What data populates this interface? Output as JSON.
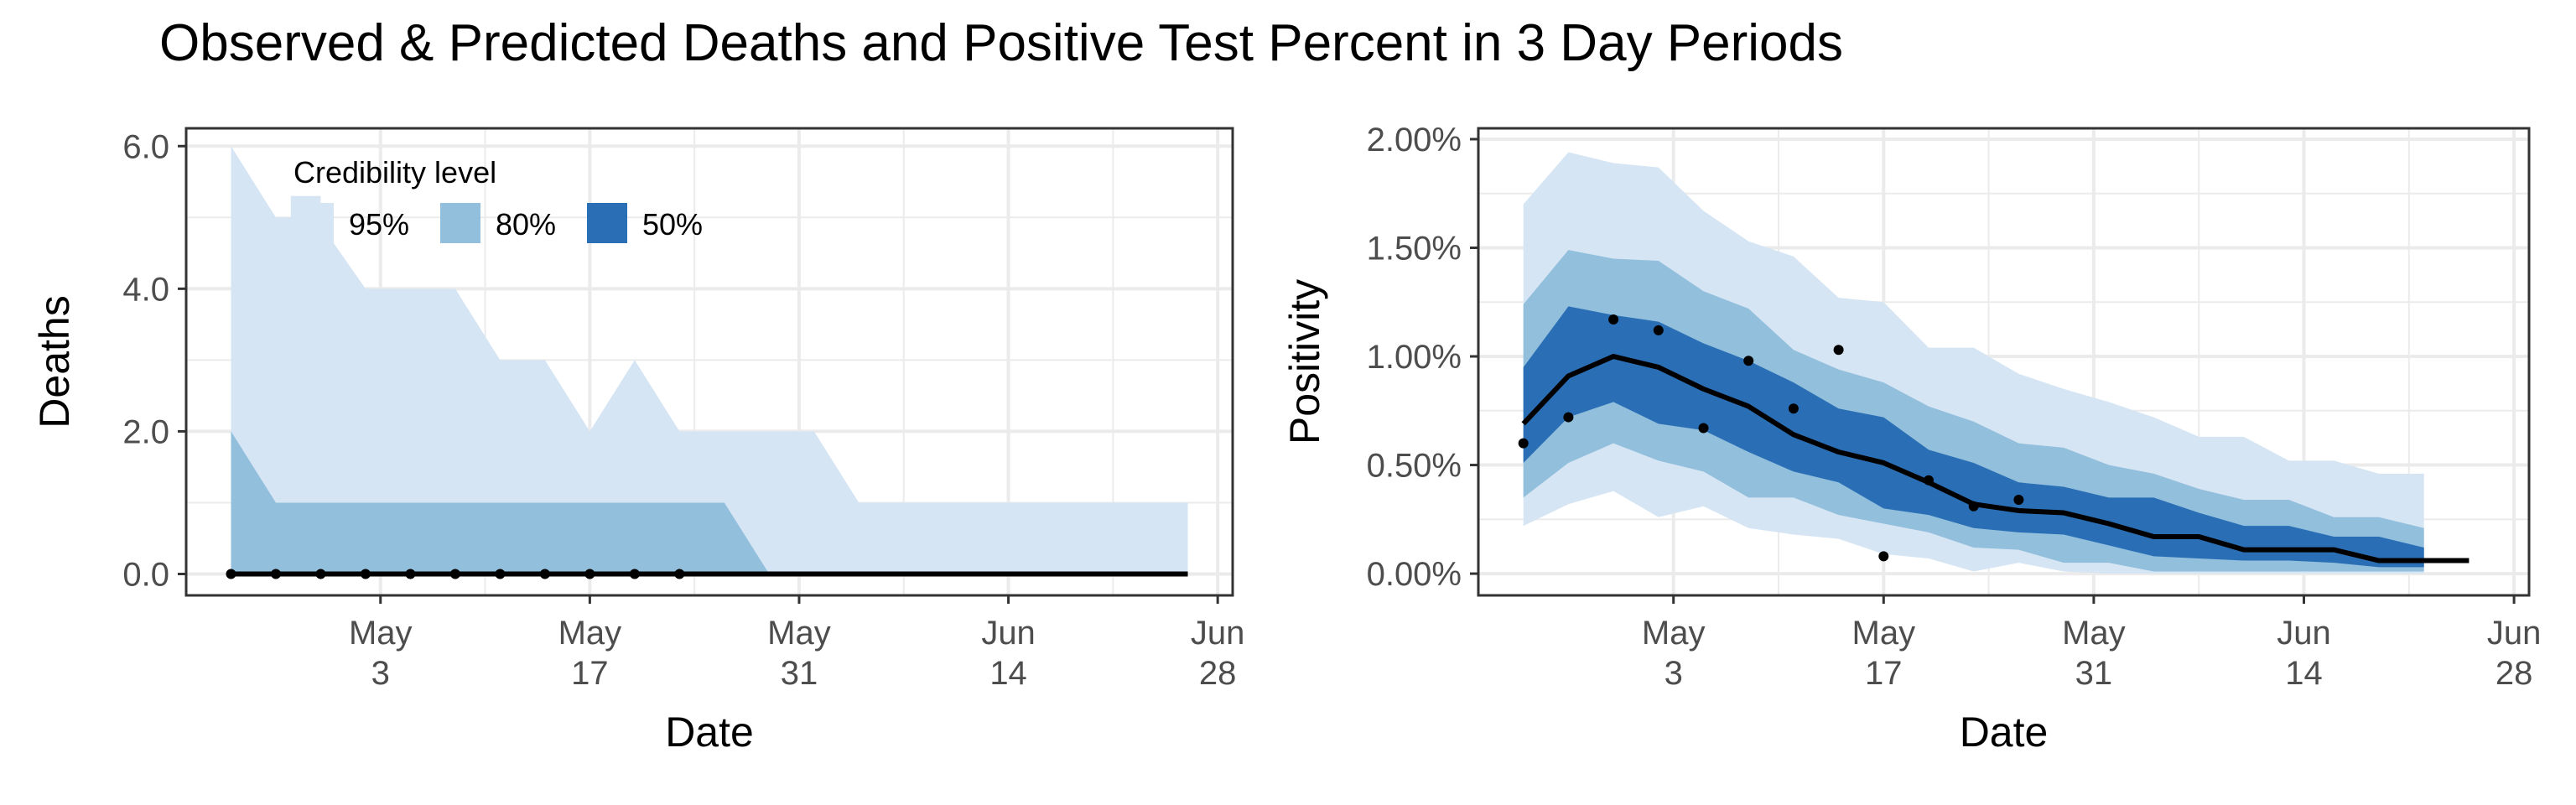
{
  "title": "Observed & Predicted Deaths and Positive Test Percent in 3 Day Periods",
  "colors": {
    "band95": "#d6e5f4",
    "band80": "#91bfdc",
    "band50": "#2a6fb5",
    "line": "#000000",
    "grid": "#ebebeb"
  },
  "legend": {
    "title": "Credibility level",
    "items": [
      {
        "label": "95%",
        "color": "#d6e5f4"
      },
      {
        "label": "80%",
        "color": "#91bfdc"
      },
      {
        "label": "50%",
        "color": "#2a6fb5"
      }
    ]
  },
  "chart_data": [
    {
      "type": "area",
      "panel": "deaths",
      "xlabel": "Date",
      "ylabel": "Deaths",
      "ylim": [
        -0.3,
        6.25
      ],
      "yticks": [
        0,
        2,
        4,
        6
      ],
      "ytick_labels": [
        "0.0",
        "2.0",
        "4.0",
        "6.0"
      ],
      "xticks": [
        "2020-05-03",
        "2020-05-17",
        "2020-05-31",
        "2020-06-14",
        "2020-06-28"
      ],
      "xtick_labels": [
        [
          "May",
          "3"
        ],
        [
          "May",
          "17"
        ],
        [
          "May",
          "31"
        ],
        [
          "Jun",
          "14"
        ],
        [
          "Jun",
          "28"
        ]
      ],
      "xlim": [
        "2020-04-20",
        "2020-06-29"
      ],
      "grid": true,
      "legend_position": "top-left",
      "band95": [
        {
          "x": "2020-04-23",
          "lo": 0,
          "hi": 6
        },
        {
          "x": "2020-04-26",
          "lo": 0,
          "hi": 5
        },
        {
          "x": "2020-04-27",
          "lo": 0,
          "hi": 5
        },
        {
          "x": "2020-04-27",
          "lo": 0,
          "hi": 5.3
        },
        {
          "x": "2020-04-29",
          "lo": 0,
          "hi": 5.3
        },
        {
          "x": "2020-04-29",
          "lo": 0,
          "hi": 4.9
        },
        {
          "x": "2020-05-02",
          "lo": 0,
          "hi": 4
        },
        {
          "x": "2020-05-08",
          "lo": 0,
          "hi": 4
        },
        {
          "x": "2020-05-11",
          "lo": 0,
          "hi": 3
        },
        {
          "x": "2020-05-14",
          "lo": 0,
          "hi": 3
        },
        {
          "x": "2020-05-17",
          "lo": 0,
          "hi": 2
        },
        {
          "x": "2020-05-20",
          "lo": 0,
          "hi": 3
        },
        {
          "x": "2020-05-23",
          "lo": 0,
          "hi": 2
        },
        {
          "x": "2020-06-01",
          "lo": 0,
          "hi": 2
        },
        {
          "x": "2020-06-04",
          "lo": 0,
          "hi": 1
        },
        {
          "x": "2020-06-26",
          "lo": 0,
          "hi": 1
        }
      ],
      "band80": [
        {
          "x": "2020-04-23",
          "lo": 0,
          "hi": 2
        },
        {
          "x": "2020-04-26",
          "lo": 0,
          "hi": 1
        },
        {
          "x": "2020-05-26",
          "lo": 0,
          "hi": 1
        },
        {
          "x": "2020-05-29",
          "lo": 0,
          "hi": 0
        }
      ],
      "band50": [],
      "predicted": [
        {
          "x": "2020-04-23",
          "y": 0
        },
        {
          "x": "2020-06-26",
          "y": 0
        }
      ],
      "observed": [
        {
          "x": "2020-04-23",
          "y": 0
        },
        {
          "x": "2020-04-26",
          "y": 0
        },
        {
          "x": "2020-04-29",
          "y": 0
        },
        {
          "x": "2020-05-02",
          "y": 0
        },
        {
          "x": "2020-05-05",
          "y": 0
        },
        {
          "x": "2020-05-08",
          "y": 0
        },
        {
          "x": "2020-05-11",
          "y": 0
        },
        {
          "x": "2020-05-14",
          "y": 0
        },
        {
          "x": "2020-05-17",
          "y": 0
        },
        {
          "x": "2020-05-20",
          "y": 0
        },
        {
          "x": "2020-05-23",
          "y": 0
        }
      ]
    },
    {
      "type": "area",
      "panel": "positivity",
      "xlabel": "Date",
      "ylabel": "Positivity",
      "ylim": [
        -0.1,
        2.05
      ],
      "yticks": [
        0,
        0.5,
        1,
        1.5,
        2
      ],
      "ytick_labels": [
        "0.00%",
        "0.50%",
        "1.00%",
        "1.50%",
        "2.00%"
      ],
      "xticks": [
        "2020-05-03",
        "2020-05-17",
        "2020-05-31",
        "2020-06-14",
        "2020-06-28"
      ],
      "xtick_labels": [
        [
          "May",
          "3"
        ],
        [
          "May",
          "17"
        ],
        [
          "May",
          "31"
        ],
        [
          "Jun",
          "14"
        ],
        [
          "Jun",
          "28"
        ]
      ],
      "xlim": [
        "2020-04-20",
        "2020-06-29"
      ],
      "grid": true,
      "band95": [
        {
          "x": "2020-04-23",
          "lo": 0.22,
          "hi": 1.7
        },
        {
          "x": "2020-04-26",
          "lo": 0.32,
          "hi": 1.94
        },
        {
          "x": "2020-04-29",
          "lo": 0.38,
          "hi": 1.89
        },
        {
          "x": "2020-05-02",
          "lo": 0.26,
          "hi": 1.87
        },
        {
          "x": "2020-05-05",
          "lo": 0.31,
          "hi": 1.67
        },
        {
          "x": "2020-05-08",
          "lo": 0.21,
          "hi": 1.53
        },
        {
          "x": "2020-05-11",
          "lo": 0.18,
          "hi": 1.46
        },
        {
          "x": "2020-05-14",
          "lo": 0.16,
          "hi": 1.27
        },
        {
          "x": "2020-05-17",
          "lo": 0.09,
          "hi": 1.25
        },
        {
          "x": "2020-05-20",
          "lo": 0.07,
          "hi": 1.04
        },
        {
          "x": "2020-05-23",
          "lo": 0.01,
          "hi": 1.04
        },
        {
          "x": "2020-05-26",
          "lo": 0.05,
          "hi": 0.92
        },
        {
          "x": "2020-05-29",
          "lo": 0.01,
          "hi": 0.85
        },
        {
          "x": "2020-06-01",
          "lo": 0.0,
          "hi": 0.79
        },
        {
          "x": "2020-06-04",
          "lo": 0.0,
          "hi": 0.72
        },
        {
          "x": "2020-06-07",
          "lo": 0.0,
          "hi": 0.63
        },
        {
          "x": "2020-06-10",
          "lo": 0.0,
          "hi": 0.63
        },
        {
          "x": "2020-06-13",
          "lo": 0.0,
          "hi": 0.52
        },
        {
          "x": "2020-06-16",
          "lo": 0.0,
          "hi": 0.52
        },
        {
          "x": "2020-06-19",
          "lo": 0.0,
          "hi": 0.46
        },
        {
          "x": "2020-06-22",
          "lo": 0.0,
          "hi": 0.46
        }
      ],
      "band80": [
        {
          "x": "2020-04-23",
          "lo": 0.35,
          "hi": 1.24
        },
        {
          "x": "2020-04-26",
          "lo": 0.51,
          "hi": 1.49
        },
        {
          "x": "2020-04-29",
          "lo": 0.6,
          "hi": 1.45
        },
        {
          "x": "2020-05-02",
          "lo": 0.52,
          "hi": 1.44
        },
        {
          "x": "2020-05-05",
          "lo": 0.47,
          "hi": 1.3
        },
        {
          "x": "2020-05-08",
          "lo": 0.35,
          "hi": 1.22
        },
        {
          "x": "2020-05-11",
          "lo": 0.35,
          "hi": 1.03
        },
        {
          "x": "2020-05-14",
          "lo": 0.27,
          "hi": 0.94
        },
        {
          "x": "2020-05-17",
          "lo": 0.23,
          "hi": 0.88
        },
        {
          "x": "2020-05-20",
          "lo": 0.19,
          "hi": 0.77
        },
        {
          "x": "2020-05-23",
          "lo": 0.12,
          "hi": 0.7
        },
        {
          "x": "2020-05-26",
          "lo": 0.11,
          "hi": 0.6
        },
        {
          "x": "2020-05-29",
          "lo": 0.05,
          "hi": 0.58
        },
        {
          "x": "2020-06-01",
          "lo": 0.05,
          "hi": 0.5
        },
        {
          "x": "2020-06-04",
          "lo": 0.01,
          "hi": 0.46
        },
        {
          "x": "2020-06-07",
          "lo": 0.01,
          "hi": 0.39
        },
        {
          "x": "2020-06-10",
          "lo": 0.01,
          "hi": 0.34
        },
        {
          "x": "2020-06-13",
          "lo": 0.01,
          "hi": 0.34
        },
        {
          "x": "2020-06-16",
          "lo": 0.01,
          "hi": 0.26
        },
        {
          "x": "2020-06-19",
          "lo": 0.01,
          "hi": 0.26
        },
        {
          "x": "2020-06-22",
          "lo": 0.01,
          "hi": 0.21
        }
      ],
      "band50": [
        {
          "x": "2020-04-23",
          "lo": 0.51,
          "hi": 0.95
        },
        {
          "x": "2020-04-26",
          "lo": 0.72,
          "hi": 1.23
        },
        {
          "x": "2020-04-29",
          "lo": 0.79,
          "hi": 1.19
        },
        {
          "x": "2020-05-02",
          "lo": 0.69,
          "hi": 1.16
        },
        {
          "x": "2020-05-05",
          "lo": 0.66,
          "hi": 1.06
        },
        {
          "x": "2020-05-08",
          "lo": 0.56,
          "hi": 0.98
        },
        {
          "x": "2020-05-11",
          "lo": 0.47,
          "hi": 0.88
        },
        {
          "x": "2020-05-14",
          "lo": 0.42,
          "hi": 0.76
        },
        {
          "x": "2020-05-17",
          "lo": 0.3,
          "hi": 0.72
        },
        {
          "x": "2020-05-20",
          "lo": 0.27,
          "hi": 0.57
        },
        {
          "x": "2020-05-23",
          "lo": 0.21,
          "hi": 0.51
        },
        {
          "x": "2020-05-26",
          "lo": 0.19,
          "hi": 0.42
        },
        {
          "x": "2020-05-29",
          "lo": 0.18,
          "hi": 0.4
        },
        {
          "x": "2020-06-01",
          "lo": 0.13,
          "hi": 0.35
        },
        {
          "x": "2020-06-04",
          "lo": 0.08,
          "hi": 0.35
        },
        {
          "x": "2020-06-07",
          "lo": 0.07,
          "hi": 0.28
        },
        {
          "x": "2020-06-10",
          "lo": 0.06,
          "hi": 0.22
        },
        {
          "x": "2020-06-13",
          "lo": 0.06,
          "hi": 0.22
        },
        {
          "x": "2020-06-16",
          "lo": 0.05,
          "hi": 0.17
        },
        {
          "x": "2020-06-19",
          "lo": 0.03,
          "hi": 0.17
        },
        {
          "x": "2020-06-22",
          "lo": 0.03,
          "hi": 0.12
        }
      ],
      "predicted": [
        {
          "x": "2020-04-23",
          "y": 0.69
        },
        {
          "x": "2020-04-26",
          "y": 0.91
        },
        {
          "x": "2020-04-29",
          "y": 1.0
        },
        {
          "x": "2020-05-02",
          "y": 0.95
        },
        {
          "x": "2020-05-05",
          "y": 0.85
        },
        {
          "x": "2020-05-08",
          "y": 0.77
        },
        {
          "x": "2020-05-11",
          "y": 0.64
        },
        {
          "x": "2020-05-14",
          "y": 0.56
        },
        {
          "x": "2020-05-17",
          "y": 0.51
        },
        {
          "x": "2020-05-20",
          "y": 0.42
        },
        {
          "x": "2020-05-23",
          "y": 0.32
        },
        {
          "x": "2020-05-26",
          "y": 0.29
        },
        {
          "x": "2020-05-29",
          "y": 0.28
        },
        {
          "x": "2020-06-01",
          "y": 0.23
        },
        {
          "x": "2020-06-04",
          "y": 0.17
        },
        {
          "x": "2020-06-07",
          "y": 0.17
        },
        {
          "x": "2020-06-10",
          "y": 0.11
        },
        {
          "x": "2020-06-13",
          "y": 0.11
        },
        {
          "x": "2020-06-16",
          "y": 0.11
        },
        {
          "x": "2020-06-19",
          "y": 0.06
        },
        {
          "x": "2020-06-22",
          "y": 0.06
        },
        {
          "x": "2020-06-25",
          "y": 0.06
        }
      ],
      "observed": [
        {
          "x": "2020-04-23",
          "y": 0.6
        },
        {
          "x": "2020-04-26",
          "y": 0.72
        },
        {
          "x": "2020-04-29",
          "y": 1.17
        },
        {
          "x": "2020-05-02",
          "y": 1.12
        },
        {
          "x": "2020-05-05",
          "y": 0.67
        },
        {
          "x": "2020-05-08",
          "y": 0.98
        },
        {
          "x": "2020-05-11",
          "y": 0.76
        },
        {
          "x": "2020-05-14",
          "y": 1.03
        },
        {
          "x": "2020-05-17",
          "y": 0.08
        },
        {
          "x": "2020-05-20",
          "y": 0.43
        },
        {
          "x": "2020-05-23",
          "y": 0.31
        },
        {
          "x": "2020-05-26",
          "y": 0.34
        }
      ]
    }
  ]
}
